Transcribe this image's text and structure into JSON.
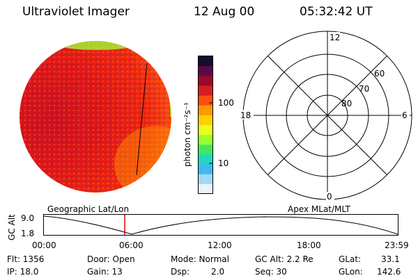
{
  "header": {
    "title": "Ultraviolet Imager",
    "date": "12 Aug 00",
    "time": "05:32:42 UT"
  },
  "colorbar": {
    "unit_label": "photon cm⁻²s⁻¹",
    "ticks": [
      "100",
      "10"
    ],
    "colors": [
      "#1a0a30",
      "#5a0a4a",
      "#9a0a2a",
      "#d42020",
      "#ff5010",
      "#ff9a00",
      "#ffd000",
      "#e8ff20",
      "#9aff30",
      "#40e860",
      "#20d8c0",
      "#40b8f0",
      "#a0d8f8",
      "#e8f4f8"
    ]
  },
  "polar": {
    "mlt_labels": {
      "top": "12",
      "left": "18",
      "right": "6",
      "bottom": "0"
    },
    "lat_labels": [
      "60",
      "70",
      "80"
    ]
  },
  "timeline": {
    "left_label": "Geographic Lat/Lon",
    "right_label": "Apex MLat/MLT",
    "axis_title": "GC Alt",
    "y_ticks": [
      "9.0",
      "1.8"
    ],
    "x_ticks": [
      "00:00",
      "06:00",
      "12:00",
      "18:00",
      "23:59"
    ],
    "marker_time": "05:32:42"
  },
  "info": {
    "flt": "Flt: 1356",
    "ip": "IP: 18.0",
    "door": "Door: Open",
    "gain": "Gain: 13",
    "mode": "Mode: Normal",
    "dsp_label": "Dsp:",
    "dsp_value": "2.0",
    "gc_alt": "GC Alt: 2.2 Re",
    "seq": "Seq: 30",
    "glat_label": "GLat:",
    "glat_value": "33.1",
    "glon_label": "GLon:",
    "glon_value": "142.6"
  }
}
